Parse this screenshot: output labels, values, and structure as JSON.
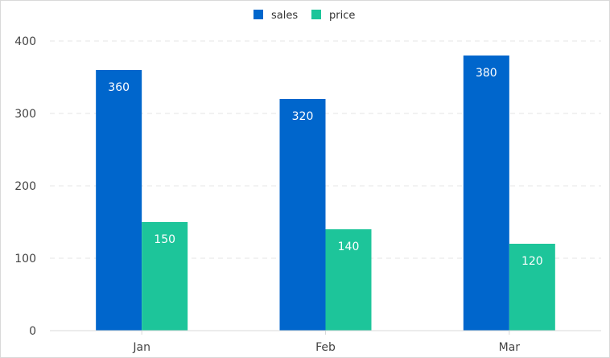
{
  "chart_data": {
    "type": "bar",
    "categories": [
      "Jan",
      "Feb",
      "Mar"
    ],
    "series": [
      {
        "name": "sales",
        "values": [
          360,
          320,
          380
        ],
        "color": "#0066CC"
      },
      {
        "name": "price",
        "values": [
          150,
          140,
          120
        ],
        "color": "#1DC59A"
      }
    ],
    "title": "",
    "xlabel": "",
    "ylabel": "",
    "ylim": [
      0,
      400
    ],
    "yticks": [
      0,
      100,
      200,
      300,
      400
    ],
    "grid": true,
    "legend_position": "top-center",
    "data_labels": true
  }
}
